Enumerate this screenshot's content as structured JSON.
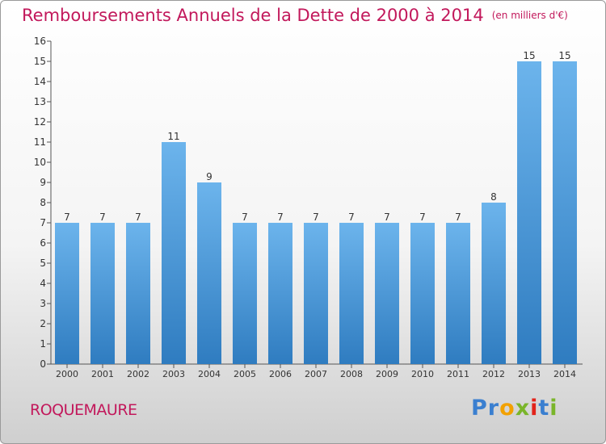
{
  "title": "Remboursements Annuels de la Dette de 2000 à 2014",
  "unit": "(en milliers d'€)",
  "commune": "ROQUEMAURE",
  "logo": {
    "letters": [
      "P",
      "r",
      "o",
      "x",
      "i",
      "t",
      "i"
    ],
    "colors": [
      "#3a7fd0",
      "#3a7fd0",
      "#f2a100",
      "#7ab52a",
      "#e2231a",
      "#3a7fd0",
      "#7ab52a"
    ]
  },
  "colors": {
    "bar_top": "#6cb4ec",
    "bar_bottom": "#2f7cc0",
    "text": "#c2185b"
  },
  "chart_data": {
    "type": "bar",
    "categories": [
      "2000",
      "2001",
      "2002",
      "2003",
      "2004",
      "2005",
      "2006",
      "2007",
      "2008",
      "2009",
      "2010",
      "2011",
      "2012",
      "2013",
      "2014"
    ],
    "values": [
      7,
      7,
      7,
      11,
      9,
      7,
      7,
      7,
      7,
      7,
      7,
      7,
      8,
      15,
      15
    ],
    "data_labels": [
      "7",
      "7",
      "7",
      "11",
      "9",
      "7",
      "7",
      "7",
      "7",
      "7",
      "7",
      "7",
      "8",
      "15",
      "15"
    ],
    "yticks": [
      "0",
      "1",
      "2",
      "3",
      "4",
      "5",
      "6",
      "7",
      "8",
      "9",
      "10",
      "11",
      "12",
      "13",
      "14",
      "15",
      "16"
    ],
    "ylim": [
      0,
      16
    ],
    "grid": false,
    "xlabel": "",
    "ylabel": ""
  }
}
